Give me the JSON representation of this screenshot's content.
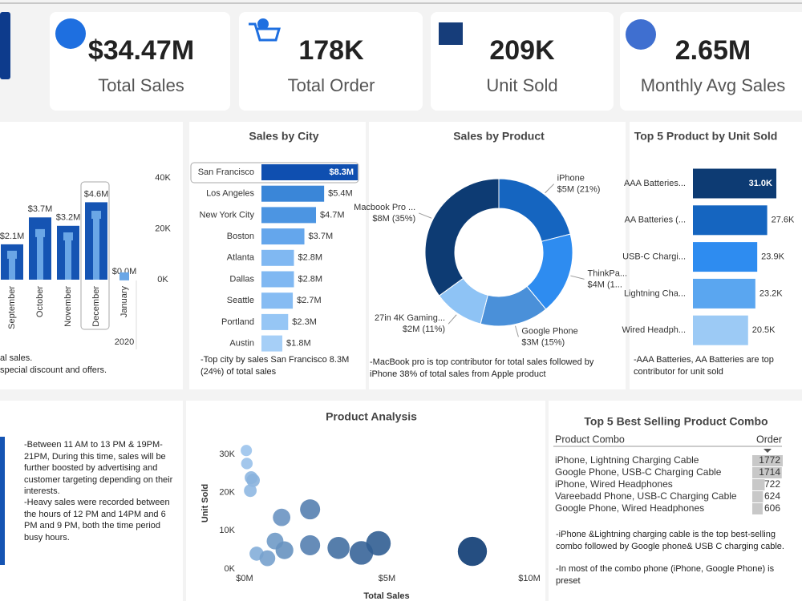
{
  "kpis": [
    {
      "value": "$34.47M",
      "label": "Total Sales"
    },
    {
      "value": "178K",
      "label": "Total Order"
    },
    {
      "value": "209K",
      "label": "Unit Sold"
    },
    {
      "value": "2.65M",
      "label": "Monthly Avg Sales"
    }
  ],
  "chart_data": [
    {
      "type": "bar",
      "categories": [
        "September",
        "October",
        "November",
        "December",
        "January"
      ],
      "group_label": "2020",
      "ylim": [
        0,
        5
      ],
      "series": [
        {
          "values": [
            2.1,
            3.7,
            3.2,
            4.6,
            0.0
          ],
          "value_labels": [
            "$2.1M",
            "$3.7M",
            "$3.2M",
            "$4.6M",
            "$0.0M"
          ],
          "color": "#1554b3"
        },
        {
          "values": [
            9800,
            18300,
            17000,
            25500,
            1300
          ],
          "color": "#6aa6e6",
          "axis": "y2"
        }
      ],
      "y2lim": [
        0,
        40000
      ],
      "y2ticks": [
        {
          "value": 0,
          "label": "0K"
        },
        {
          "value": 20000,
          "label": "20K"
        },
        {
          "value": 40000,
          "label": "40K"
        }
      ],
      "notes": [
        "al sales.",
        "special discount and offers."
      ]
    },
    {
      "type": "hbar",
      "title": "Sales by City",
      "categories": [
        "San Francisco",
        "Los Angeles",
        "New York City",
        "Boston",
        "Atlanta",
        "Dallas",
        "Seattle",
        "Portland",
        "Austin"
      ],
      "values": [
        8.3,
        5.4,
        4.7,
        3.7,
        2.8,
        2.8,
        2.7,
        2.3,
        1.8
      ],
      "value_labels": [
        "$8.3M",
        "$5.4M",
        "$4.7M",
        "$3.7M",
        "$2.8M",
        "$2.8M",
        "$2.7M",
        "$2.3M",
        "$1.8M"
      ],
      "colors": [
        "#0f4fb0",
        "#3a86d8",
        "#4c95e2",
        "#64a6ec",
        "#80b8f2",
        "#80b8f2",
        "#86bcf3",
        "#96c6f5",
        "#a6cff7"
      ],
      "xlim": [
        0,
        8.5
      ],
      "note": "-Top city by sales San Francisco 8.3M (24%) of total sales"
    },
    {
      "type": "pie",
      "title": "Sales by Product",
      "categories": [
        "iPhone",
        "ThinkPa...",
        "Google Phone",
        "27in 4K Gaming...",
        "Macbook Pro ..."
      ],
      "values": [
        21,
        18,
        15,
        11,
        35
      ],
      "value_labels": [
        "$5M (21%)",
        "$4M (1...",
        "$3M (15%)",
        "$2M (11%)",
        "$8M (35%)"
      ],
      "colors": [
        "#1565c0",
        "#2e8cf0",
        "#4a90d9",
        "#8ec3f5",
        "#0d3b73"
      ],
      "note": "-MacBook pro is top contributor for total sales followed by iPhone 38% of total sales from Apple product"
    },
    {
      "type": "hbar",
      "title": "Top 5 Product by Unit Sold",
      "categories": [
        "AAA Batteries...",
        "AA Batteries (...",
        "USB-C Chargi...",
        "Lightning Cha...",
        "Wired Headph..."
      ],
      "values": [
        31000,
        27600,
        23900,
        23200,
        20500
      ],
      "value_labels": [
        "31.0K",
        "27.6K",
        "23.9K",
        "23.2K",
        "20.5K"
      ],
      "colors": [
        "#0d3b73",
        "#1565c0",
        "#2e8cf0",
        "#5aa6f0",
        "#9ccaf5"
      ],
      "xlim": [
        0,
        31000
      ],
      "note": "-AAA Batteries, AA Batteries are top contributor for unit sold"
    },
    {
      "type": "scatter",
      "title": "Product Analysis",
      "x_label": "Total Sales",
      "y_label": "Unit Sold",
      "x": [
        0.06,
        0.08,
        0.23,
        0.3,
        0.2,
        1.3,
        2.3,
        1.07,
        0.42,
        0.8,
        1.4,
        2.3,
        3.3,
        4.1,
        4.7,
        8.0
      ],
      "values": [
        31000,
        27600,
        23900,
        23200,
        20500,
        13500,
        15600,
        7300,
        4000,
        2800,
        4900,
        6200,
        5500,
        4200,
        6700,
        4600
      ],
      "xlim": [
        0,
        10
      ],
      "xticks": [
        {
          "value": 0,
          "label": "$0M"
        },
        {
          "value": 5,
          "label": "$5M"
        },
        {
          "value": 10,
          "label": "$10M"
        }
      ],
      "ylim": [
        0,
        30000
      ],
      "yticks": [
        {
          "value": 0,
          "label": "0K"
        },
        {
          "value": 10000,
          "label": "10K"
        },
        {
          "value": 20000,
          "label": "20K"
        },
        {
          "value": 30000,
          "label": "30K"
        }
      ]
    }
  ],
  "hour_notes": [
    "-Between 11 AM to 13 PM & 19PM-21PM, During this time, sales will be further boosted by advertising and customer targeting depending on their interests.",
    "-Heavy sales were recorded between the hours of 12 PM and 14PM and 6 PM and 9 PM, both the time period busy hours."
  ],
  "table": {
    "title": "Top 5 Best Selling Product Combo",
    "columns": [
      "Product Combo",
      "Order"
    ],
    "rows": [
      [
        "iPhone, Lightning Charging Cable",
        1772
      ],
      [
        "Google Phone, USB-C Charging Cable",
        1714
      ],
      [
        "iPhone, Wired Headphones",
        722
      ],
      [
        "Vareebadd Phone, USB-C Charging Cable",
        624
      ],
      [
        "Google Phone, Wired Headphones",
        606
      ]
    ],
    "notes": [
      "-iPhone &Lightning charging cable is the top best-selling combo followed by Google phone& USB C charging cable.",
      "-In most of the combo phone (iPhone, Google Phone) is preset"
    ]
  }
}
